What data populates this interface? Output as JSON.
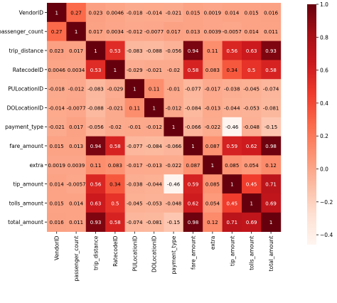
{
  "chart_data": {
    "type": "heatmap",
    "rows": [
      "VendorID",
      "passenger_count",
      "trip_distance",
      "RatecodeID",
      "PULocationID",
      "DOLocationID",
      "payment_type",
      "fare_amount",
      "extra",
      "tip_amount",
      "tolls_amount",
      "total_amount"
    ],
    "columns": [
      "VendorID",
      "passenger_count",
      "trip_distance",
      "RatecodeID",
      "PULocationID",
      "DOLocationID",
      "payment_type",
      "fare_amount",
      "extra",
      "tip_amount",
      "tolls_amount",
      "total_amount"
    ],
    "values": [
      [
        1,
        0.27,
        0.023,
        0.0046,
        -0.018,
        -0.014,
        -0.021,
        0.015,
        0.0019,
        0.014,
        0.015,
        0.016
      ],
      [
        0.27,
        1,
        0.017,
        0.0034,
        -0.012,
        -0.0077,
        0.017,
        0.013,
        0.0039,
        -0.0057,
        0.014,
        0.011
      ],
      [
        0.023,
        0.017,
        1,
        0.53,
        -0.083,
        -0.088,
        -0.056,
        0.94,
        0.11,
        0.56,
        0.63,
        0.93
      ],
      [
        0.0046,
        0.0034,
        0.53,
        1,
        -0.029,
        -0.021,
        -0.02,
        0.58,
        0.083,
        0.34,
        0.5,
        0.58
      ],
      [
        -0.018,
        -0.012,
        -0.083,
        -0.029,
        1,
        0.11,
        -0.01,
        -0.077,
        -0.017,
        -0.038,
        -0.045,
        -0.074
      ],
      [
        -0.014,
        -0.0077,
        -0.088,
        -0.021,
        0.11,
        1,
        -0.012,
        -0.084,
        -0.013,
        -0.044,
        -0.053,
        -0.081
      ],
      [
        -0.021,
        0.017,
        -0.056,
        -0.02,
        -0.01,
        -0.012,
        1,
        -0.066,
        -0.022,
        -0.46,
        -0.048,
        -0.15
      ],
      [
        0.015,
        0.013,
        0.94,
        0.58,
        -0.077,
        -0.084,
        -0.066,
        1,
        0.087,
        0.59,
        0.62,
        0.98
      ],
      [
        0.0019,
        0.0039,
        0.11,
        0.083,
        -0.017,
        -0.013,
        -0.022,
        0.087,
        1,
        0.085,
        0.054,
        0.12
      ],
      [
        0.014,
        -0.0057,
        0.56,
        0.34,
        -0.038,
        -0.044,
        -0.46,
        0.59,
        0.085,
        1,
        0.45,
        0.71
      ],
      [
        0.015,
        0.014,
        0.63,
        0.5,
        -0.045,
        -0.053,
        -0.048,
        0.62,
        0.054,
        0.45,
        1,
        0.69
      ],
      [
        0.016,
        0.011,
        0.93,
        0.58,
        -0.074,
        -0.081,
        -0.15,
        0.98,
        0.12,
        0.71,
        0.69,
        1
      ]
    ],
    "colorbar": {
      "min": -0.46,
      "max": 1.0,
      "ticks": [
        1.0,
        0.8,
        0.6,
        0.4,
        0.2,
        0.0,
        -0.2,
        -0.4
      ],
      "tick_labels": [
        "1.0",
        "0.8",
        "0.6",
        "0.4",
        "0.2",
        "0.0",
        "−0.2",
        "−0.4"
      ]
    },
    "colormap": "Reds",
    "colors": [
      "#fff5f0",
      "#fee0d2",
      "#fcbba1",
      "#fc9272",
      "#fb6a4a",
      "#ef3b2c",
      "#cb181d",
      "#a50f15",
      "#67000d"
    ],
    "title": "",
    "xlabel": "",
    "ylabel": "",
    "annotations": true
  }
}
